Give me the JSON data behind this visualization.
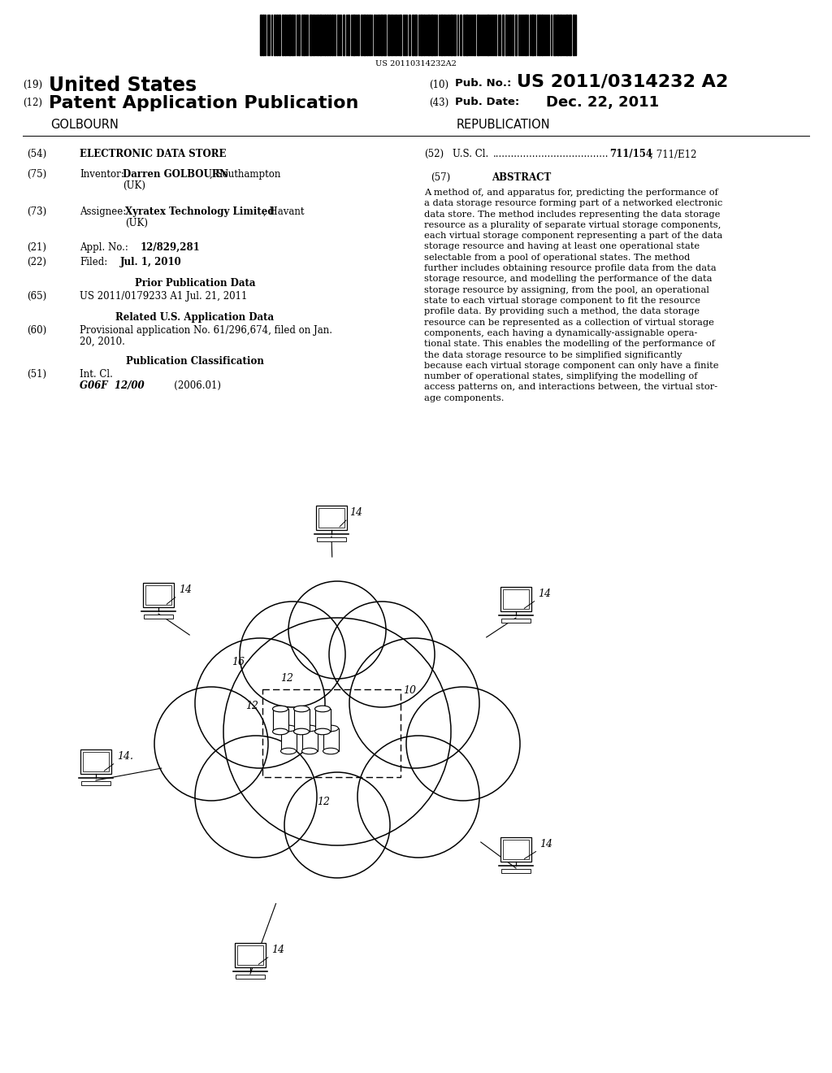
{
  "background_color": "#ffffff",
  "barcode_text": "US 20110314232A2",
  "abstract_lines": [
    "A method of, and apparatus for, predicting the performance of",
    "a data storage resource forming part of a networked electronic",
    "data store. The method includes representing the data storage",
    "resource as a plurality of separate virtual storage components,",
    "each virtual storage component representing a part of the data",
    "storage resource and having at least one operational state",
    "selectable from a pool of operational states. The method",
    "further includes obtaining resource profile data from the data",
    "storage resource, and modelling the performance of the data",
    "storage resource by assigning, from the pool, an operational",
    "state to each virtual storage component to fit the resource",
    "profile data. By providing such a method, the data storage",
    "resource can be represented as a collection of virtual storage",
    "components, each having a dynamically-assignable opera-",
    "tional state. This enables the modelling of the performance of",
    "the data storage resource to be simplified significantly",
    "because each virtual storage component can only have a finite",
    "number of operational states, simplifying the modelling of",
    "access patterns on, and interactions between, the virtual stor-",
    "age components."
  ]
}
